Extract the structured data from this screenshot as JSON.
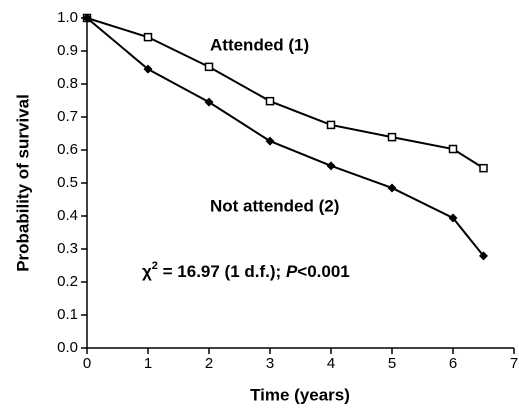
{
  "chart_data": {
    "type": "line",
    "x_label": "Time (years)",
    "y_label": "Probability of survival",
    "x": [
      0,
      1,
      2,
      3,
      4,
      5,
      6,
      6.5
    ],
    "series": [
      {
        "name": "Attended (1)",
        "color": "#000000",
        "marker": "open-square",
        "values": [
          1.0,
          0.942,
          0.852,
          0.748,
          0.676,
          0.639,
          0.603,
          0.545
        ]
      },
      {
        "name": "Not attended (2)",
        "color": "#000000",
        "marker": "filled-diamond",
        "values": [
          1.0,
          0.845,
          0.745,
          0.627,
          0.552,
          0.485,
          0.394,
          0.279
        ]
      }
    ],
    "annotation": [
      "χ",
      "2",
      " = 16.97 (1 d.f.); ",
      "P",
      "<0.001"
    ],
    "xlim": [
      0,
      7
    ],
    "xticks": [
      0,
      1,
      2,
      3,
      4,
      5,
      6,
      7
    ],
    "ylim": [
      0,
      1
    ],
    "yticks": [
      {
        "value": 0,
        "label": "0.0"
      },
      0.1,
      0.2,
      0.3,
      0.4,
      0.5,
      0.6,
      0.7,
      0.8,
      0.9,
      {
        "value": 1,
        "label": "1.0"
      }
    ],
    "grid": false
  }
}
